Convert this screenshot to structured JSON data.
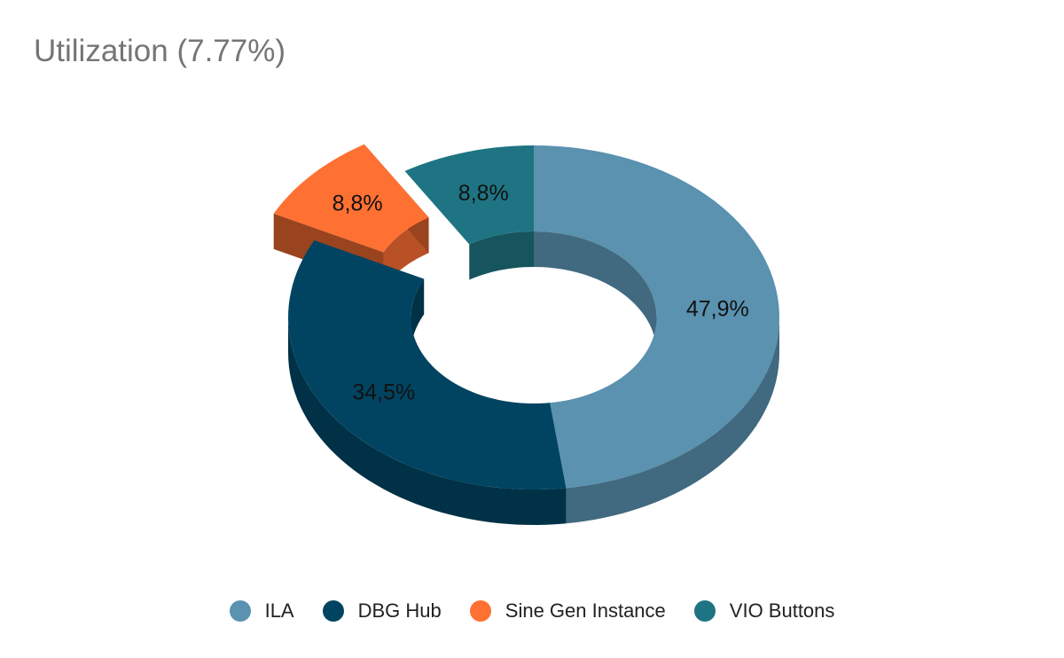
{
  "chart_data": {
    "type": "pie",
    "variant": "3d-donut",
    "title": "Utilization (7.77%)",
    "slices": [
      {
        "name": "ILA",
        "value": 47.9,
        "label": "47,9%",
        "color": "#5a92b0",
        "exploded": false
      },
      {
        "name": "DBG Hub",
        "value": 34.5,
        "label": "34,5%",
        "color": "#004461",
        "exploded": false
      },
      {
        "name": "Sine Gen Instance",
        "value": 8.8,
        "label": "8,8%",
        "color": "#ff7033",
        "exploded": true
      },
      {
        "name": "VIO Buttons",
        "value": 8.8,
        "label": "8,8%",
        "color": "#1f7483",
        "exploded": false
      }
    ],
    "legend_position": "bottom"
  }
}
